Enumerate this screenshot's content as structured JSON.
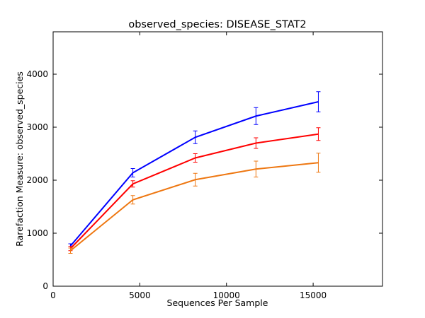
{
  "chart_data": {
    "type": "line",
    "title": "observed_species: DISEASE_STAT2",
    "xlabel": "Sequences Per Sample",
    "ylabel": "Rarefaction Measure: observed_species",
    "xlim": [
      0,
      19000
    ],
    "ylim": [
      0,
      4800
    ],
    "xticks": [
      0,
      5000,
      10000,
      15000
    ],
    "yticks": [
      0,
      1000,
      2000,
      3000,
      4000
    ],
    "grid": false,
    "legend": "none",
    "error_bars": true,
    "series": [
      {
        "color": "#0000ff",
        "x": [
          1000,
          4600,
          8200,
          11700,
          15300
        ],
        "y": [
          760,
          2140,
          2810,
          3210,
          3480
        ],
        "err": [
          40,
          80,
          120,
          160,
          190
        ]
      },
      {
        "color": "#ff0000",
        "x": [
          1000,
          4600,
          8200,
          11700,
          15300
        ],
        "y": [
          710,
          1930,
          2420,
          2700,
          2870
        ],
        "err": [
          40,
          60,
          80,
          100,
          120
        ]
      },
      {
        "color": "#ee7711",
        "x": [
          1000,
          4600,
          8200,
          11700,
          15300
        ],
        "y": [
          670,
          1630,
          2010,
          2210,
          2330
        ],
        "err": [
          50,
          80,
          120,
          150,
          180
        ]
      }
    ]
  }
}
